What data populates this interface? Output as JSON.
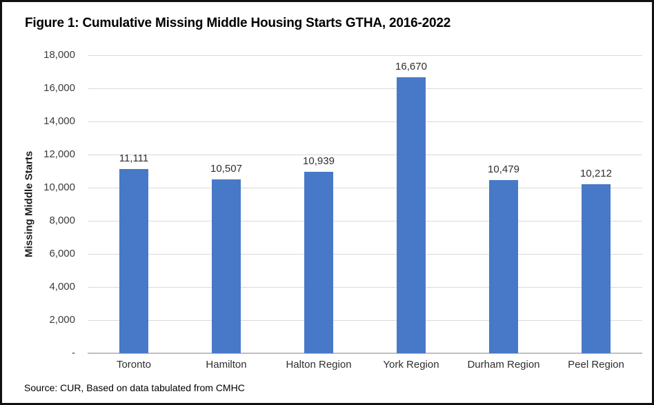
{
  "figure": {
    "title": "Figure 1: Cumulative Missing Middle Housing Starts GTHA, 2016-2022",
    "source": "Source: CUR, Based on data tabulated from CMHC"
  },
  "chart_data": {
    "type": "bar",
    "title": "Figure 1: Cumulative Missing Middle Housing Starts GTHA, 2016-2022",
    "categories": [
      "Toronto",
      "Hamilton",
      "Halton Region",
      "York Region",
      "Durham Region",
      "Peel Region"
    ],
    "values": [
      11111,
      10507,
      10939,
      16670,
      10479,
      10212
    ],
    "data_labels": [
      "11,111",
      "10,507",
      "10,939",
      "16,670",
      "10,479",
      "10,212"
    ],
    "xlabel": "",
    "ylabel": "Missing Middle Starts",
    "ylim": [
      0,
      18000
    ],
    "ytick_step": 2000,
    "yticks": [
      {
        "value": 18000,
        "label": "18,000"
      },
      {
        "value": 16000,
        "label": "16,000"
      },
      {
        "value": 14000,
        "label": "14,000"
      },
      {
        "value": 12000,
        "label": "12,000"
      },
      {
        "value": 10000,
        "label": "10,000"
      },
      {
        "value": 8000,
        "label": "8,000"
      },
      {
        "value": 6000,
        "label": "6,000"
      },
      {
        "value": 4000,
        "label": "4,000"
      },
      {
        "value": 2000,
        "label": "2,000"
      },
      {
        "value": 0,
        "label": "-"
      }
    ],
    "grid": true,
    "gridlines": "horizontal",
    "legend": false,
    "colors": {
      "bar": "#4878C8",
      "gridline": "#D9D9D9",
      "axis_line": "#BFBFBF",
      "text": "#2e2e2e"
    }
  }
}
